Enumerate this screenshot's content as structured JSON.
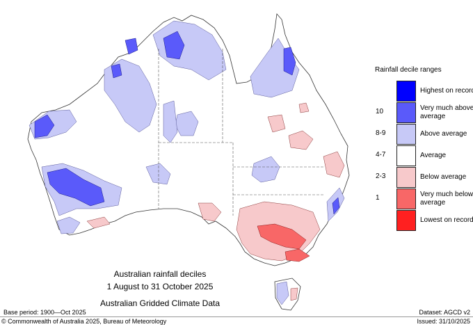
{
  "legend": {
    "title": "Rainfall decile ranges",
    "items": [
      {
        "key": "",
        "label": "Highest on record",
        "color": "#0000ff"
      },
      {
        "key": "10",
        "label": "Very much above average",
        "color": "#5a5afa"
      },
      {
        "key": "8-9",
        "label": "Above average",
        "color": "#c7c9f7"
      },
      {
        "key": "4-7",
        "label": "Average",
        "color": "#ffffff"
      },
      {
        "key": "2-3",
        "label": "Below average",
        "color": "#f7c9cb"
      },
      {
        "key": "1",
        "label": "Very much below average",
        "color": "#f86767"
      },
      {
        "key": "",
        "label": "Lowest on record",
        "color": "#ff2020"
      }
    ]
  },
  "map_title": {
    "line1": "Australian rainfall deciles",
    "line2": "1 August to 31 October 2025",
    "line3": "Australian Gridded Climate Data"
  },
  "footer": {
    "base_period": "Base period: 1900—Oct 2025",
    "dataset": "Dataset: AGCD v2",
    "copyright": "© Commonwealth of Australia 2025, Bureau of Meteorology",
    "issued": "Issued: 31/10/2025"
  }
}
